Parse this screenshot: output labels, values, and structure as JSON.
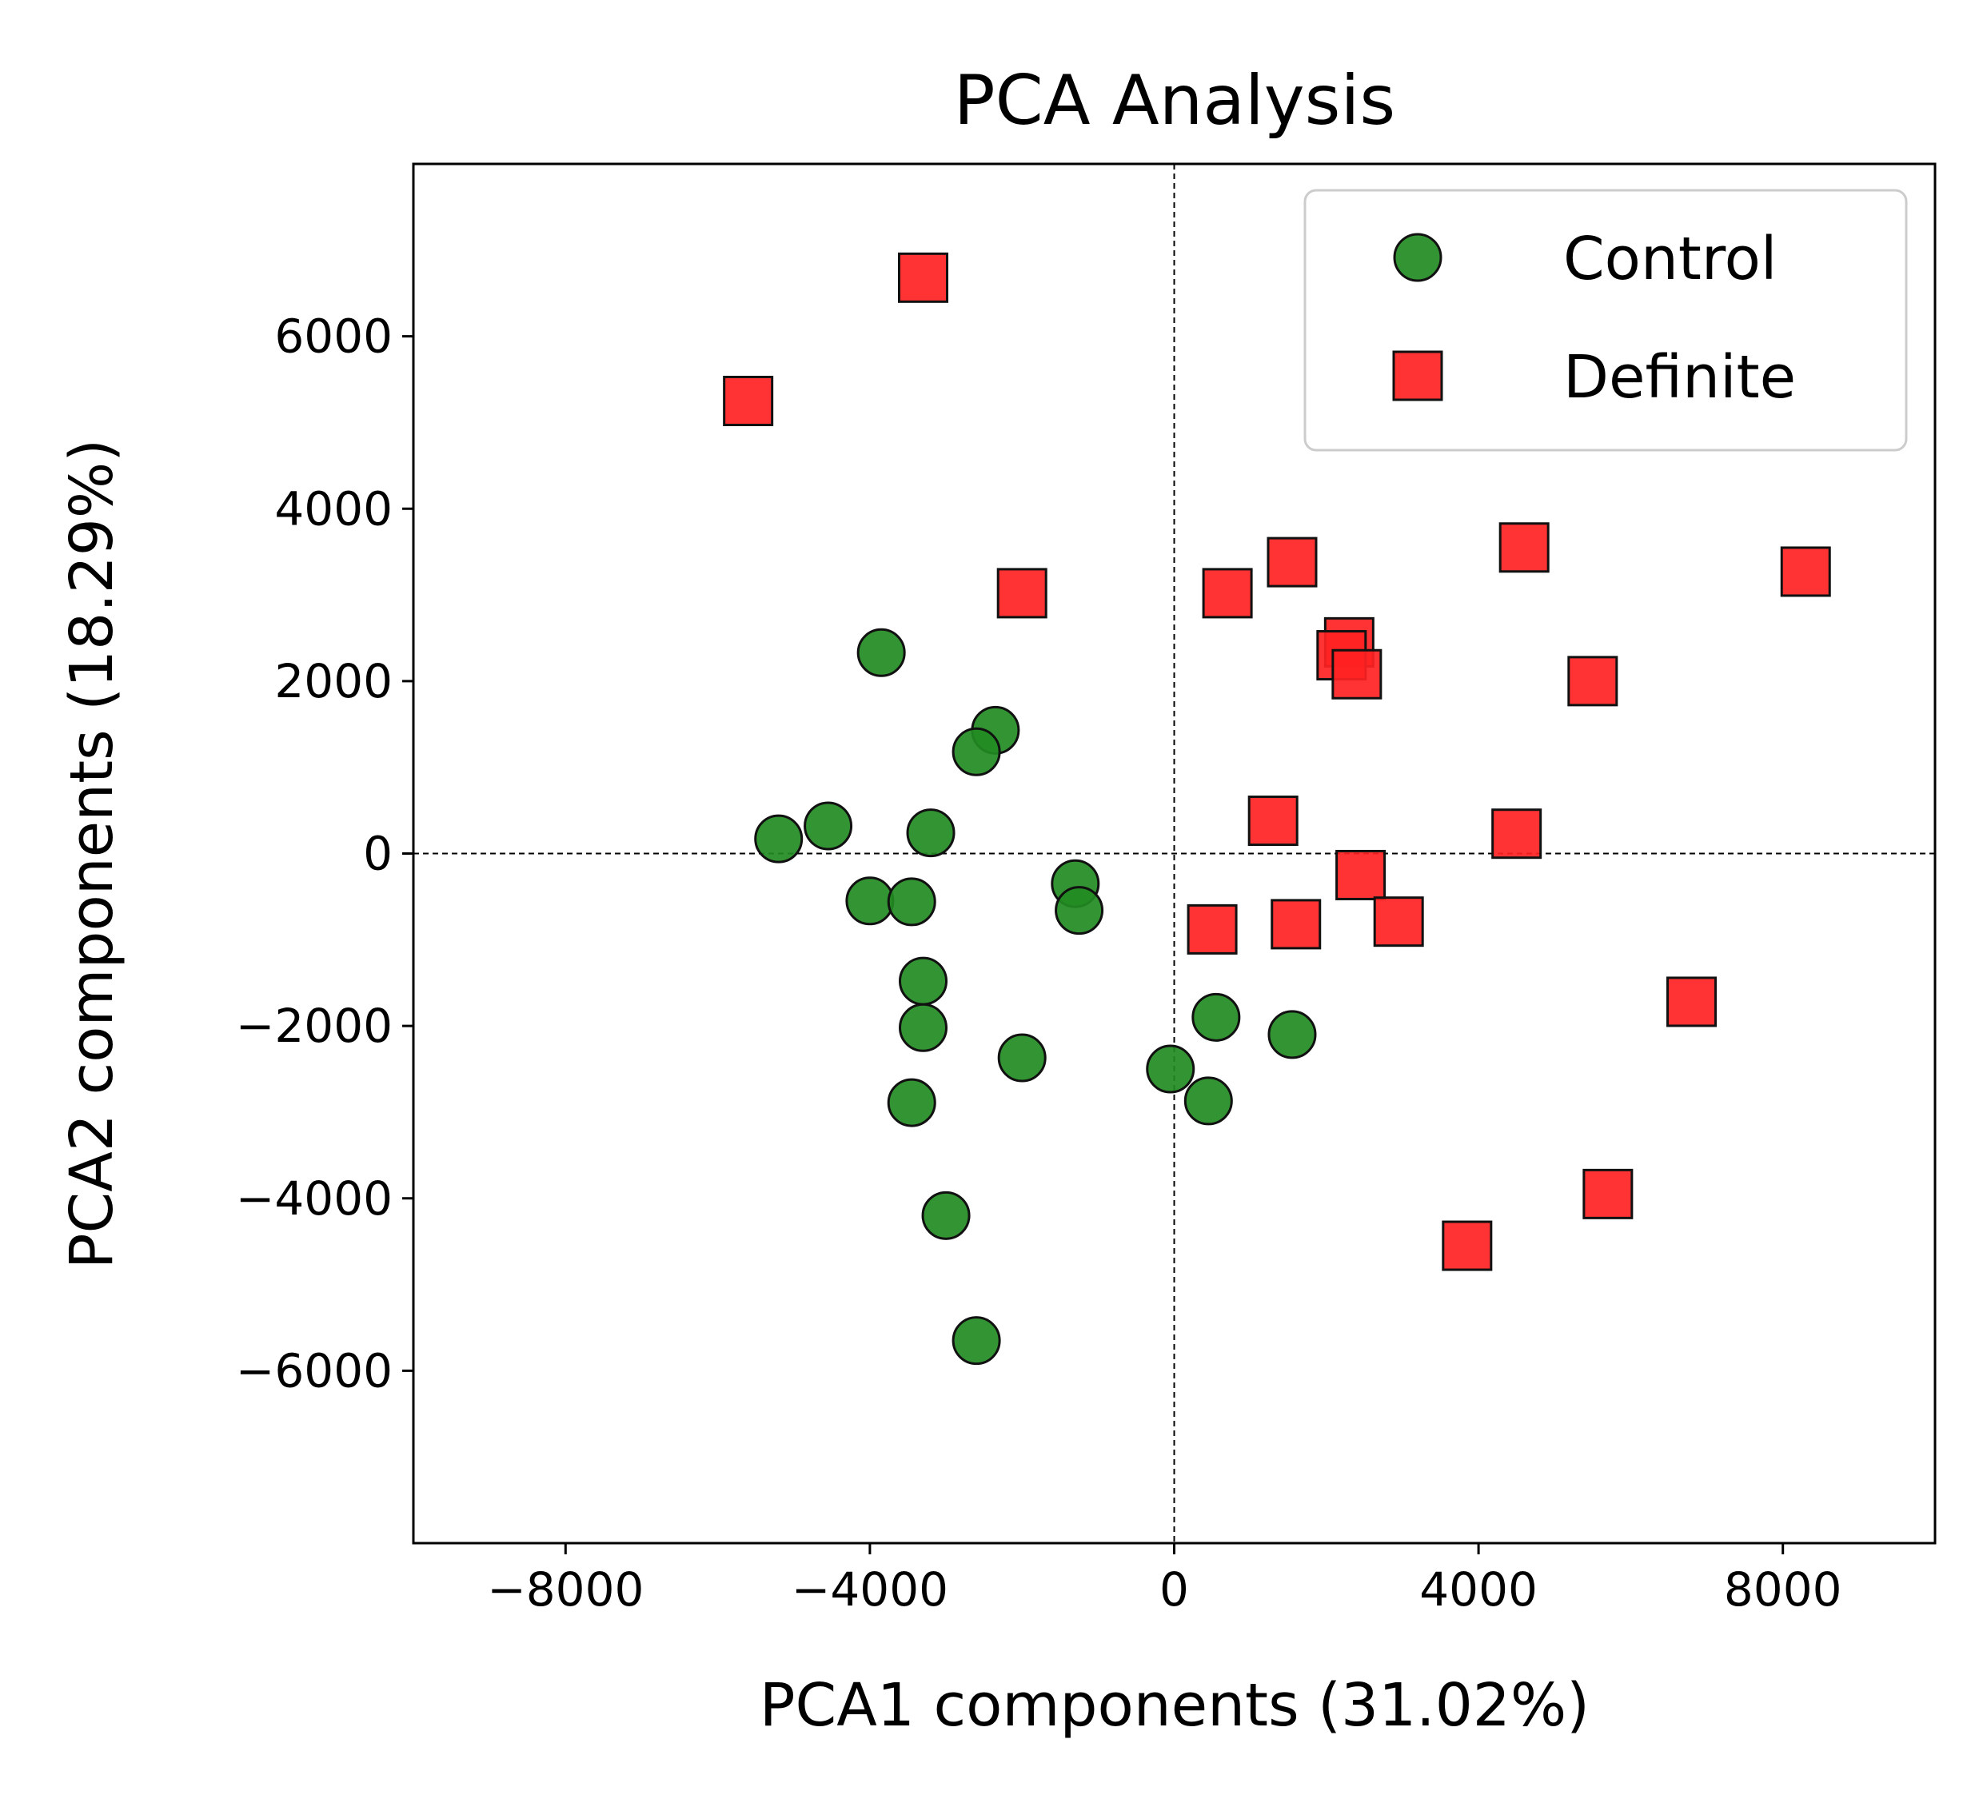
{
  "chart_data": {
    "type": "scatter",
    "title": "PCA Analysis",
    "xlabel": "PCA1 components (31.02%)",
    "ylabel": "PCA2 components (18.29%)",
    "xlim": [
      -10000,
      10000
    ],
    "ylim": [
      -8000,
      8000
    ],
    "xticks": [
      -8000,
      -4000,
      0,
      4000,
      8000
    ],
    "yticks": [
      -6000,
      -4000,
      -2000,
      0,
      2000,
      4000,
      6000
    ],
    "xtick_labels": [
      "−8000",
      "−4000",
      "0",
      "4000",
      "8000"
    ],
    "ytick_labels": [
      "−6000",
      "−4000",
      "−2000",
      "0",
      "2000",
      "4000",
      "6000"
    ],
    "grid": false,
    "reference_lines": {
      "x": 0,
      "y": 0,
      "style": "dashed"
    },
    "legend_position": "top-right",
    "series": [
      {
        "name": "Control",
        "marker": "circle",
        "color": "#228B22",
        "points": [
          [
            -3850,
            2330
          ],
          [
            -2350,
            1430
          ],
          [
            -2600,
            1180
          ],
          [
            -5200,
            170
          ],
          [
            -4550,
            320
          ],
          [
            -3200,
            240
          ],
          [
            -4000,
            -550
          ],
          [
            -3450,
            -560
          ],
          [
            -1300,
            -350
          ],
          [
            -1250,
            -660
          ],
          [
            -3300,
            -1480
          ],
          [
            -3300,
            -2020
          ],
          [
            -2000,
            -2370
          ],
          [
            -3450,
            -2890
          ],
          [
            -3000,
            -4200
          ],
          [
            -2600,
            -5650
          ],
          [
            550,
            -1900
          ],
          [
            1550,
            -2100
          ],
          [
            -50,
            -2500
          ],
          [
            450,
            -2870
          ]
        ]
      },
      {
        "name": "Definite",
        "marker": "square",
        "color": "#FF2222",
        "points": [
          [
            -3300,
            6680
          ],
          [
            -5600,
            5250
          ],
          [
            -2000,
            3020
          ],
          [
            700,
            3020
          ],
          [
            1550,
            3380
          ],
          [
            4600,
            3550
          ],
          [
            8300,
            3270
          ],
          [
            2300,
            2450
          ],
          [
            2200,
            2300
          ],
          [
            2400,
            2080
          ],
          [
            5500,
            2000
          ],
          [
            1300,
            380
          ],
          [
            4500,
            230
          ],
          [
            2450,
            -250
          ],
          [
            500,
            -880
          ],
          [
            1600,
            -820
          ],
          [
            2950,
            -790
          ],
          [
            6800,
            -1720
          ],
          [
            5700,
            -3950
          ],
          [
            3850,
            -4550
          ]
        ]
      }
    ]
  }
}
